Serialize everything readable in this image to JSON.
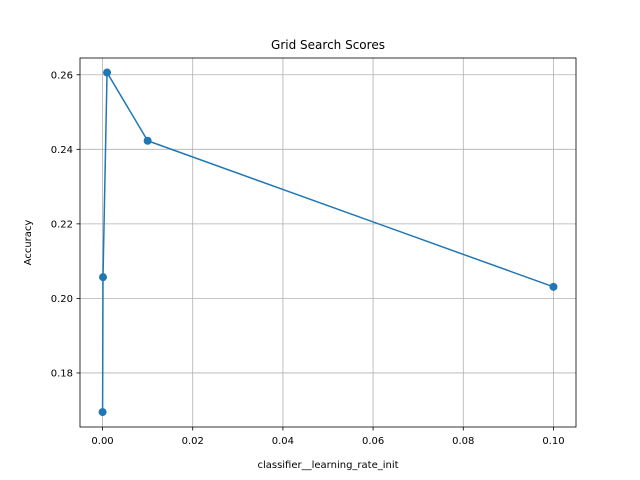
{
  "chart_data": {
    "type": "line",
    "title": "Grid Search Scores",
    "xlabel": "classifier__learning_rate_init",
    "ylabel": "Accuracy",
    "xlim": [
      -0.005,
      0.105
    ],
    "ylim": [
      0.1655,
      0.2645
    ],
    "xticks": [
      0.0,
      0.02,
      0.04,
      0.06,
      0.08,
      0.1
    ],
    "xtick_labels": [
      "0.00",
      "0.02",
      "0.04",
      "0.06",
      "0.08",
      "0.10"
    ],
    "yticks": [
      0.18,
      0.2,
      0.22,
      0.24,
      0.26
    ],
    "ytick_labels": [
      "0.18",
      "0.20",
      "0.22",
      "0.24",
      "0.26"
    ],
    "grid": true,
    "color": "#1f77b4",
    "series": [
      {
        "x": [
          1e-05,
          0.0001,
          0.001,
          0.01,
          0.1
        ],
        "y": [
          0.1695,
          0.2057,
          0.2606,
          0.2423,
          0.2031
        ]
      }
    ]
  }
}
